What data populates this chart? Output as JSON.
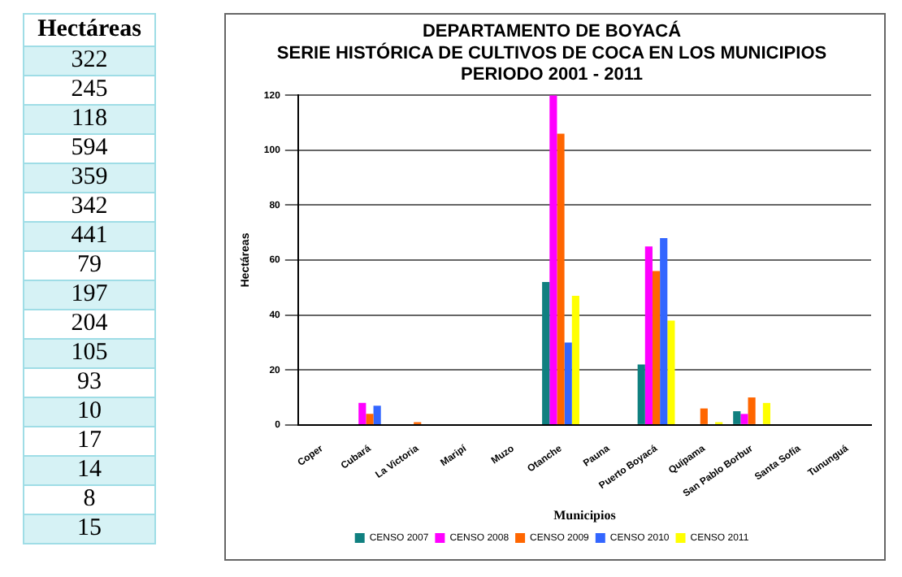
{
  "chart_data": [
    {
      "type": "other",
      "title": "Hectáreas",
      "annotations": [
        "322",
        "245",
        "118",
        "594",
        "359",
        "342",
        "441",
        "79",
        "197",
        "204",
        "105",
        "93",
        "10",
        "17",
        "14",
        "8",
        "15"
      ]
    },
    {
      "type": "bar",
      "title": "DEPARTAMENTO DE BOYACÁ",
      "subtitle": "SERIE HISTÓRICA DE CULTIVOS DE COCA EN LOS MUNICIPIOS\nPERIODO 2001 - 2011",
      "xlabel": "Municipios",
      "ylabel": "Hectáreas",
      "categories": [
        "Coper",
        "Cubará",
        "La Victoria",
        "Maripí",
        "Muzo",
        "Otanche",
        "Pauna",
        "Puerto Boyacá",
        "Quípama",
        "San Pablo Borbur",
        "Santa Sofía",
        "Tununguá"
      ],
      "series": [
        {
          "name": "CENSO 2007",
          "color": "#108080",
          "values": [
            0,
            0,
            0,
            0,
            0,
            52,
            0,
            22,
            0,
            5,
            0,
            0
          ]
        },
        {
          "name": "CENSO 2008",
          "color": "#ff00ff",
          "values": [
            0,
            8,
            0,
            0,
            0,
            120,
            0,
            65,
            0,
            4,
            0,
            0
          ]
        },
        {
          "name": "CENSO 2009",
          "color": "#ff6600",
          "values": [
            0,
            4,
            1,
            0,
            0,
            106,
            0,
            56,
            6,
            10,
            0,
            0
          ]
        },
        {
          "name": "CENSO 2010",
          "color": "#3366ff",
          "values": [
            0,
            7,
            0,
            0,
            0,
            30,
            0,
            68,
            0,
            0,
            0,
            0
          ]
        },
        {
          "name": "CENSO 2011",
          "color": "#ffff00",
          "values": [
            0,
            0,
            0,
            0,
            0,
            47,
            0,
            38,
            1,
            8,
            0,
            0
          ]
        }
      ],
      "ylim": [
        0,
        120
      ],
      "yticks": [
        0,
        20,
        40,
        60,
        80,
        100,
        120
      ],
      "grid": "y",
      "legend": "bottom"
    }
  ]
}
